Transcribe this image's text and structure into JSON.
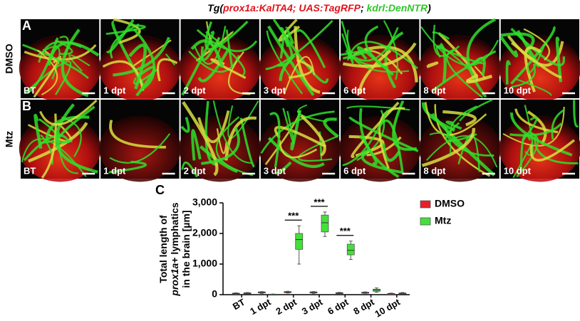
{
  "figure": {
    "title": [
      {
        "text": "Tg(",
        "color": "#000000"
      },
      {
        "text": "prox1a:KalTA4; UAS:TagRFP",
        "color": "#e3121b"
      },
      {
        "text": "; ",
        "color": "#000000"
      },
      {
        "text": "kdrl:DenNTR",
        "color": "#2fc72a"
      },
      {
        "text": ")",
        "color": "#000000"
      }
    ],
    "rows": [
      {
        "panel": "A",
        "condition": "DMSO",
        "images": [
          "BT",
          "1 dpt",
          "2 dpt",
          "3 dpt",
          "6 dpt",
          "8 dpt",
          "10 dpt"
        ]
      },
      {
        "panel": "B",
        "condition": "Mtz",
        "images": [
          "BT",
          "1 dpt",
          "2 dpt",
          "3 dpt",
          "6 dpt",
          "8 dpt",
          "10 dpt"
        ]
      }
    ]
  },
  "chart_data": {
    "type": "box",
    "panel": "C",
    "ylabel": [
      "Total length of",
      [
        "prox1a",
        "+ lymphatics"
      ],
      "in the brain [µm]"
    ],
    "categories": [
      "BT",
      "1 dpt",
      "2 dpt",
      "3 dpt",
      "6 dpt",
      "8 dpt",
      "10 dpt"
    ],
    "series": [
      {
        "name": "DMSO",
        "color": "#e8202a",
        "values": [
          [
            10,
            20,
            30,
            50,
            60
          ],
          [
            40,
            60,
            75,
            90,
            100
          ],
          [
            50,
            70,
            85,
            100,
            110
          ],
          [
            40,
            60,
            75,
            90,
            100
          ],
          [
            30,
            40,
            55,
            65,
            75
          ],
          [
            40,
            55,
            70,
            80,
            90
          ],
          [
            10,
            20,
            30,
            40,
            50
          ]
        ]
      },
      {
        "name": "Mtz",
        "color": "#44e03a",
        "values": [
          [
            20,
            30,
            45,
            60,
            70
          ],
          [
            0,
            5,
            10,
            15,
            20
          ],
          [
            1000,
            1480,
            1800,
            2000,
            2250
          ],
          [
            1900,
            2050,
            2350,
            2600,
            2700
          ],
          [
            1150,
            1300,
            1450,
            1650,
            1750
          ],
          [
            80,
            110,
            150,
            180,
            220
          ],
          [
            20,
            30,
            40,
            55,
            70
          ]
        ]
      }
    ],
    "significance": [
      null,
      null,
      "***",
      "***",
      "***",
      null,
      null
    ],
    "ylim": [
      0,
      3000
    ],
    "yticks": [
      0,
      {
        "value": 1000,
        "label": "1,000"
      },
      {
        "value": 2000,
        "label": "2,000"
      },
      {
        "value": 3000,
        "label": "3,000"
      }
    ]
  }
}
